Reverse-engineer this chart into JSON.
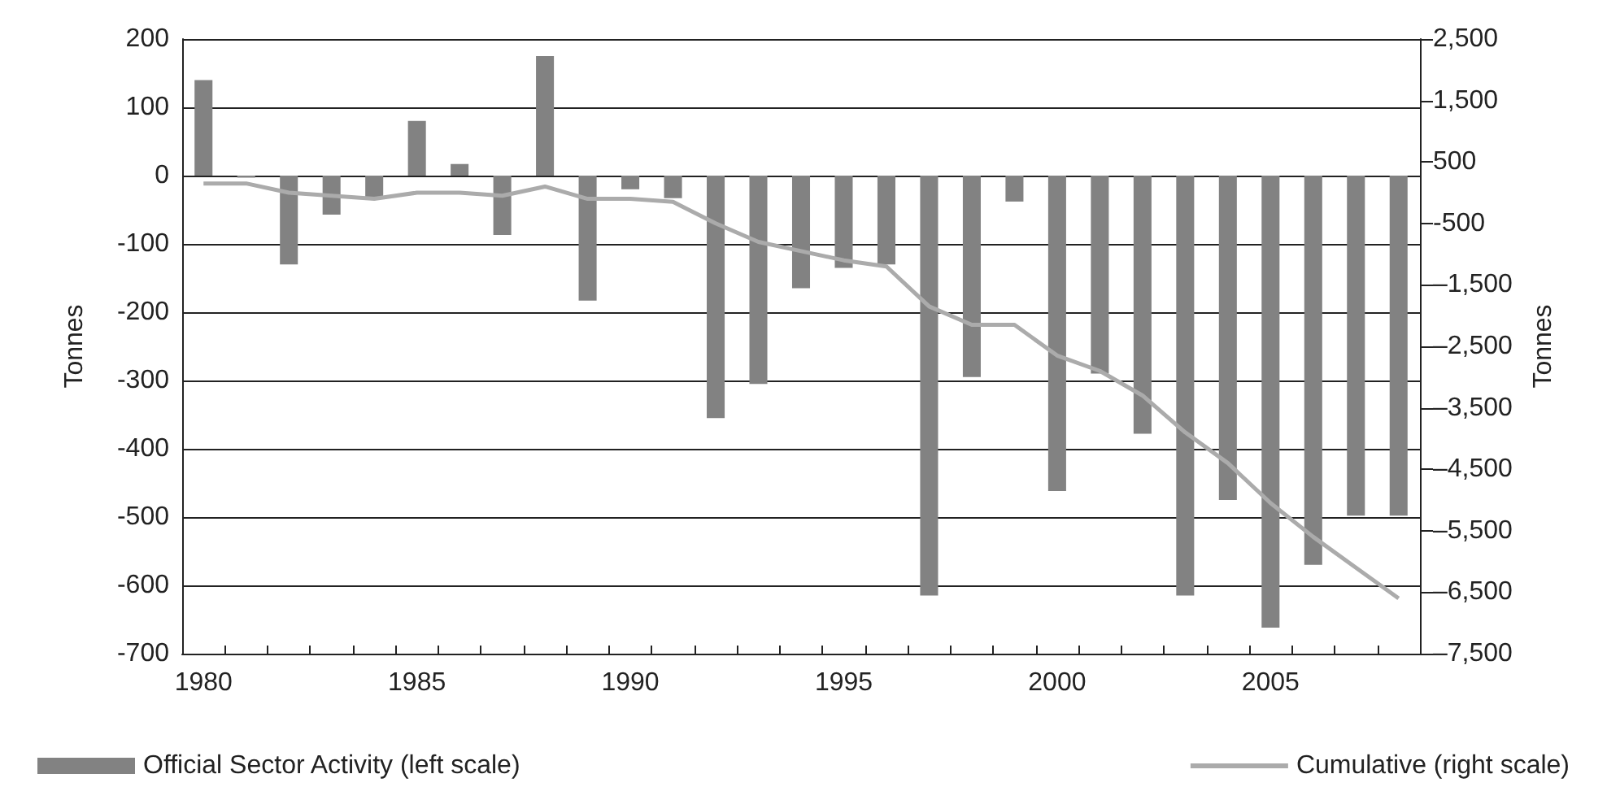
{
  "chart_data": {
    "type": "bar",
    "categories": [
      "1980",
      null,
      null,
      null,
      null,
      "1985",
      null,
      null,
      null,
      null,
      "1990",
      null,
      null,
      null,
      null,
      "1995",
      null,
      null,
      null,
      null,
      "2000",
      null,
      null,
      null,
      null,
      "2005",
      null,
      null,
      null
    ],
    "series": [
      {
        "name": "Official Sector Activity (left scale)",
        "color": "#828282",
        "values": [
          140,
          -3,
          -130,
          -57,
          -33,
          80,
          17,
          -87,
          175,
          -183,
          -20,
          -33,
          -355,
          -305,
          -165,
          -135,
          -130,
          -615,
          -295,
          -38,
          -462,
          -290,
          -378,
          -615,
          -475,
          -662,
          -570,
          -498,
          -498
        ]
      },
      {
        "name": "Cumulative (right scale)",
        "type": "line",
        "axis": "y2",
        "color": "#ababab",
        "values": [
          150,
          150,
          0,
          -50,
          -100,
          0,
          0,
          -50,
          100,
          -100,
          -100,
          -150,
          -500,
          -800,
          -950,
          -1100,
          -1200,
          -1850,
          -2150,
          -2150,
          -2650,
          -2900,
          -3300,
          -3900,
          -4400,
          -5050,
          -5600,
          -6100,
          -6600
        ]
      }
    ],
    "ylabel": "Tonnes",
    "y2label": "Tonnes",
    "ylim": [
      -700,
      200
    ],
    "yticks": [
      -700,
      -600,
      -500,
      -400,
      -300,
      -200,
      -100,
      0,
      100,
      200
    ],
    "y2lim": [
      -7500,
      2500
    ],
    "y2ticks": [
      {
        "value": -7500,
        "label": "–7,500"
      },
      {
        "value": -6500,
        "label": "–6,500"
      },
      {
        "value": -5500,
        "label": "–5,500"
      },
      {
        "value": -4500,
        "label": "–4,500"
      },
      {
        "value": -3500,
        "label": "–3,500"
      },
      {
        "value": -2500,
        "label": "–2,500"
      },
      {
        "value": -1500,
        "label": "–1,500"
      },
      -500,
      500,
      {
        "value": 1500,
        "label": "1,500"
      },
      {
        "value": 2500,
        "label": "2,500"
      }
    ],
    "grid": "y",
    "legend": "bottom",
    "marker": "none"
  }
}
